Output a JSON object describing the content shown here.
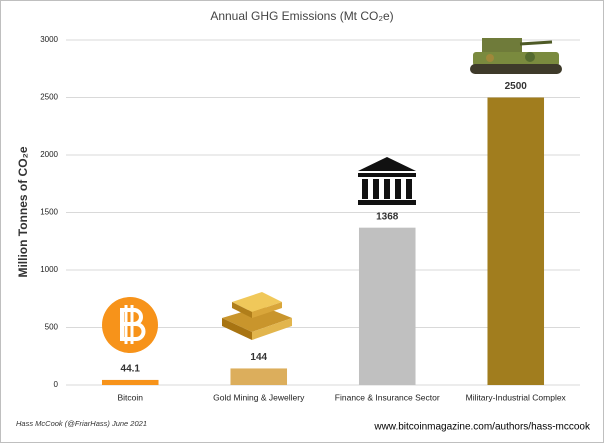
{
  "chart_data": {
    "type": "bar",
    "title": "Annual GHG Emissions (Mt CO₂e)",
    "y_label": "Million Tonnes of CO₂e",
    "categories": [
      "Bitcoin",
      "Gold Mining & Jewellery",
      "Finance & Insurance Sector",
      "Military-Industrial Complex"
    ],
    "values": [
      44.1,
      144,
      1368,
      2500
    ],
    "colors": [
      "#f7931a",
      "#dcae5c",
      "#c0c0c0",
      "#a17d1e"
    ],
    "ylim": [
      0,
      3000
    ],
    "yticks": [
      0,
      500,
      1000,
      1500,
      2000,
      2500,
      3000
    ],
    "grid": true,
    "footnote_left": "Hass McCook (@FriarHass)  June 2021",
    "footnote_right": "www.bitcoinmagazine.com/authors/hass-mccook"
  }
}
